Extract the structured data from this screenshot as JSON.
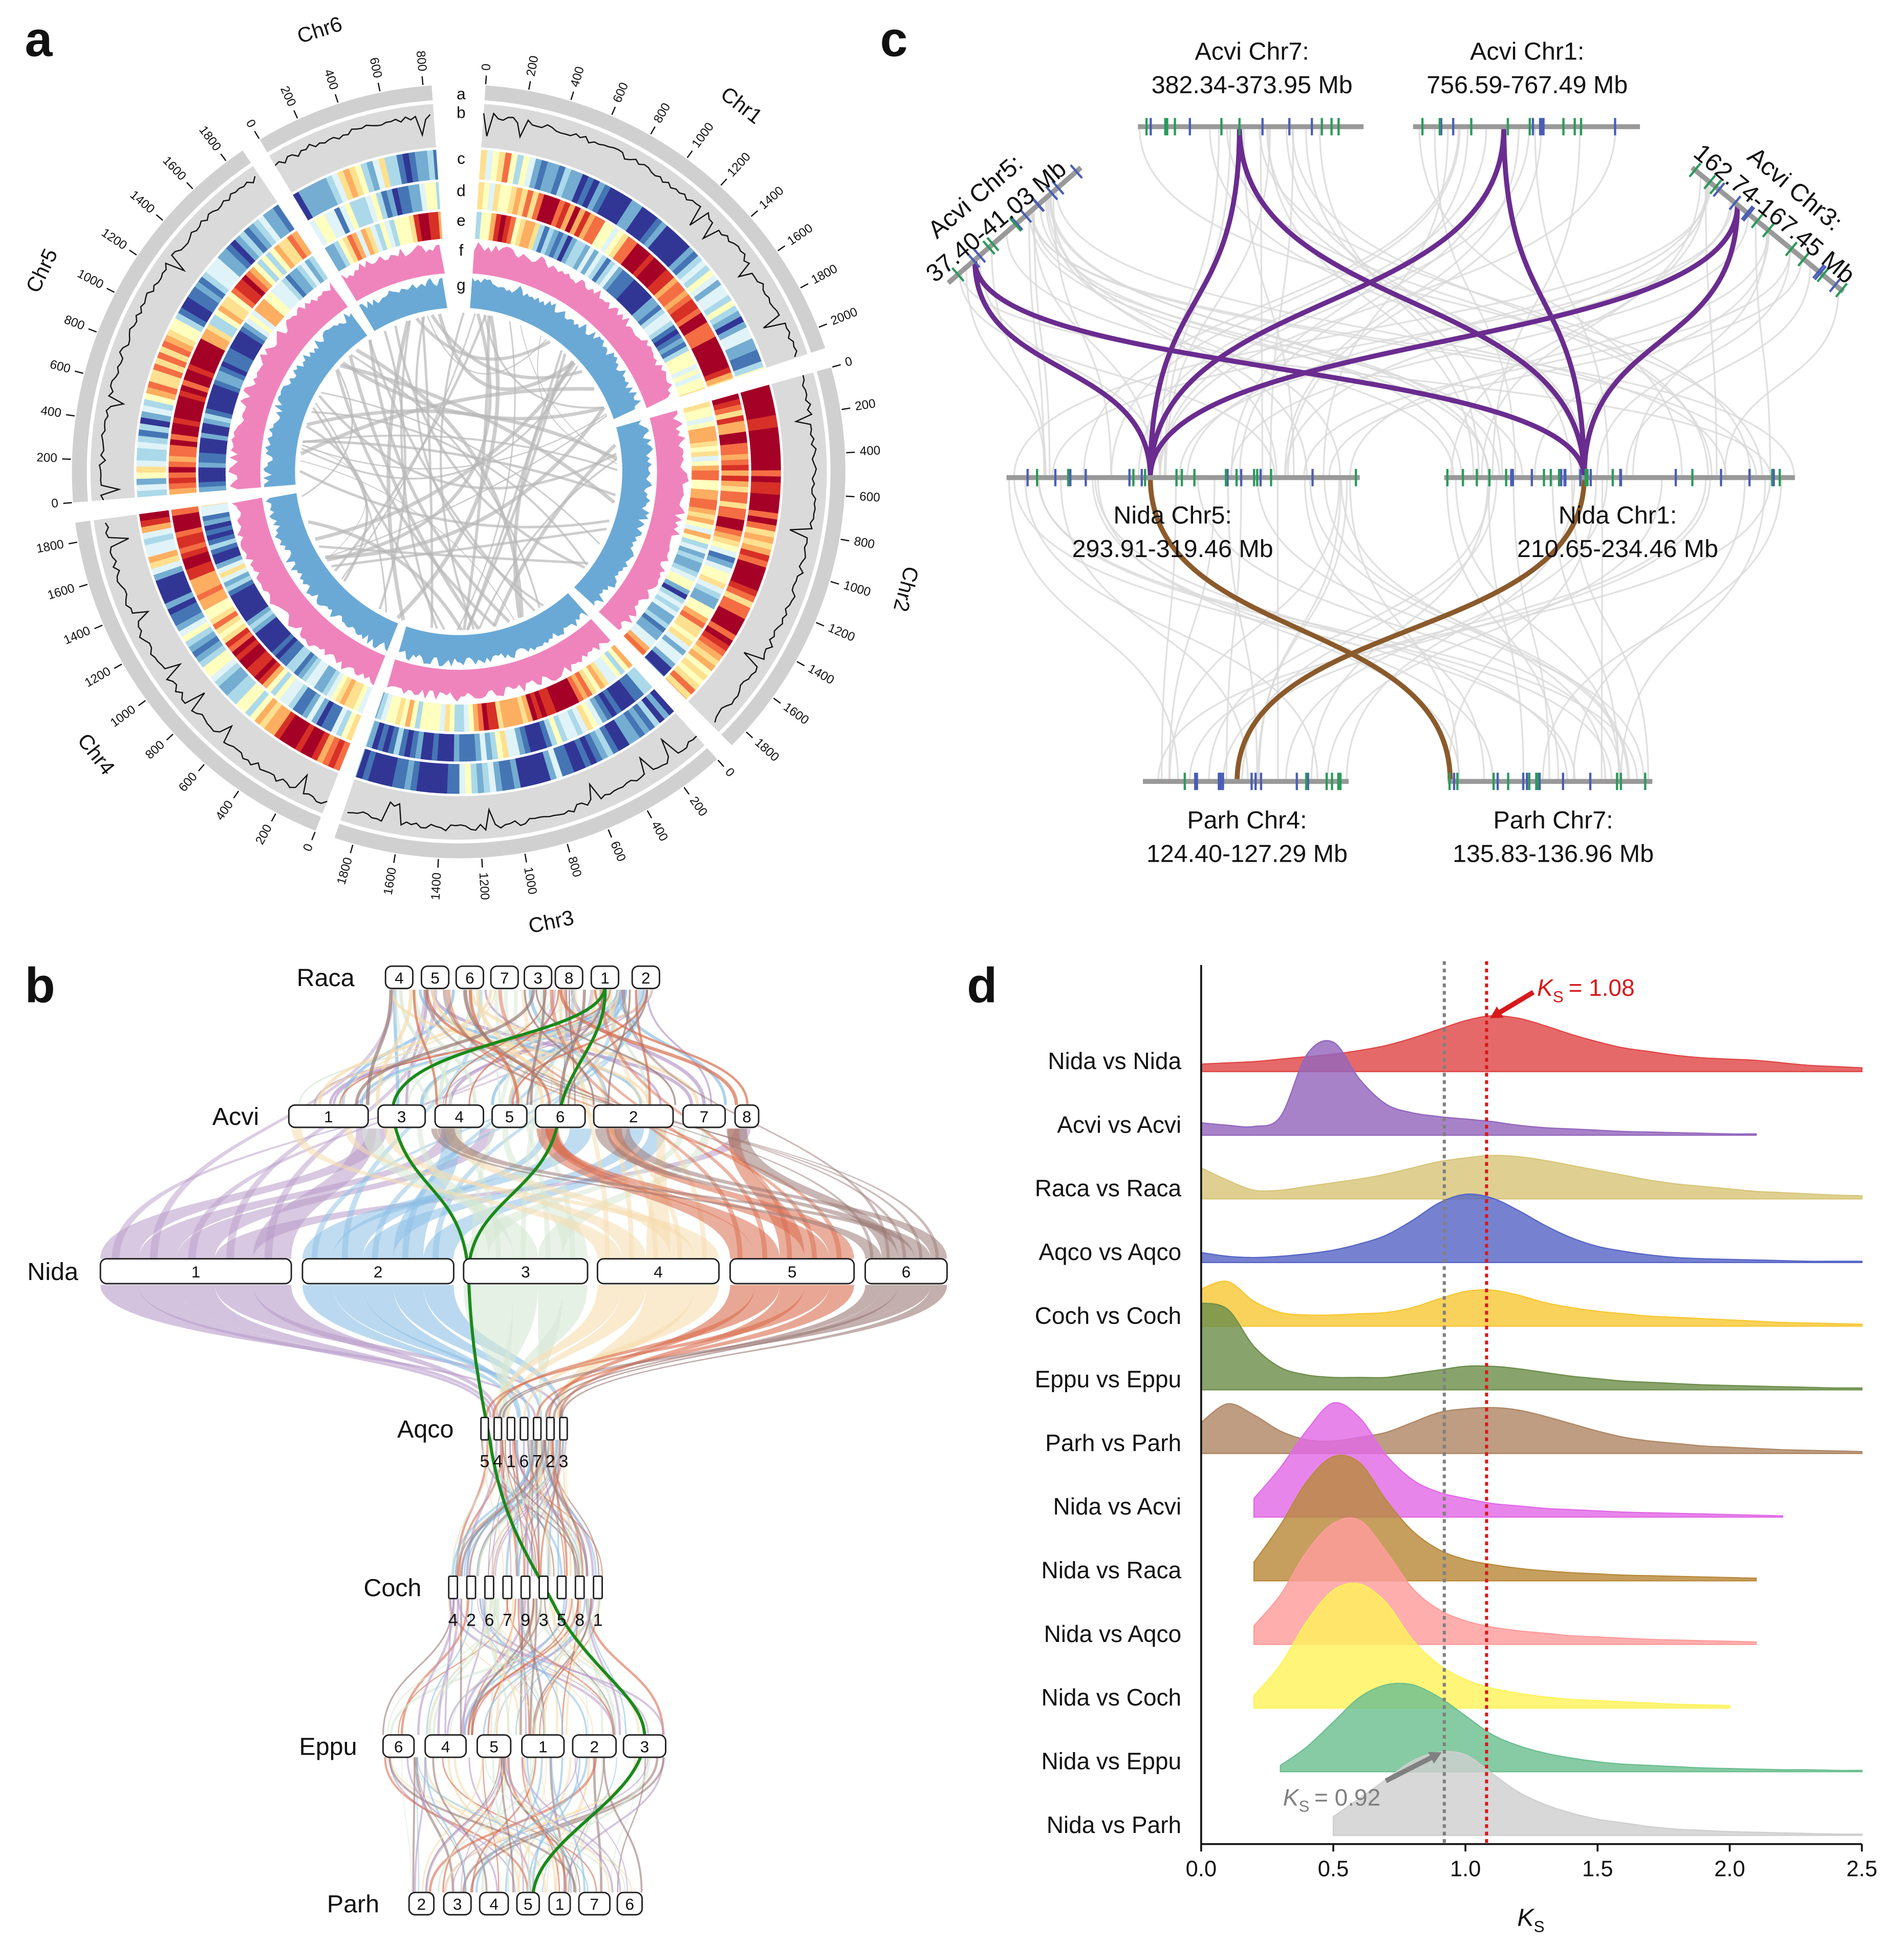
{
  "panel_labels": [
    "a",
    "b",
    "c",
    "d"
  ],
  "circos": {
    "chromosomes": [
      {
        "name": "Chr1",
        "ticks": [
          0,
          200,
          400,
          600,
          800,
          1000,
          1200,
          1400,
          1600,
          1800,
          2000
        ]
      },
      {
        "name": "Chr2",
        "ticks": [
          0,
          200,
          400,
          600,
          800,
          1000,
          1200,
          1400,
          1600,
          1800
        ]
      },
      {
        "name": "Chr3",
        "ticks": [
          0,
          200,
          400,
          600,
          800,
          1000,
          1200,
          1400,
          1600,
          1800
        ]
      },
      {
        "name": "Chr4",
        "ticks": [
          0,
          200,
          400,
          600,
          800,
          1000,
          1200,
          1400,
          1600,
          1800
        ]
      },
      {
        "name": "Chr5",
        "ticks": [
          0,
          200,
          400,
          600,
          800,
          1000,
          1200,
          1400,
          1600,
          1800
        ]
      },
      {
        "name": "Chr6",
        "ticks": [
          0,
          200,
          400,
          600,
          800
        ]
      }
    ],
    "tracks": [
      "a",
      "b",
      "c",
      "d",
      "e",
      "f",
      "g"
    ]
  },
  "synteny": {
    "rows": [
      {
        "name": "Raca",
        "blocks": [
          "4",
          "5",
          "6",
          "7",
          "3",
          "8",
          "1",
          "2"
        ]
      },
      {
        "name": "Acvi",
        "blocks": [
          "1",
          "3",
          "4",
          "5",
          "6",
          "2",
          "7",
          "8"
        ]
      },
      {
        "name": "Nida",
        "blocks": [
          "1",
          "2",
          "3",
          "4",
          "5",
          "6"
        ]
      },
      {
        "name": "Aqco",
        "blocks": [
          "5",
          "4",
          "1",
          "6",
          "7",
          "2",
          "3"
        ]
      },
      {
        "name": "Coch",
        "blocks": [
          "4",
          "2",
          "6",
          "7",
          "9",
          "3",
          "5",
          "8",
          "1"
        ]
      },
      {
        "name": "Eppu",
        "blocks": [
          "6",
          "4",
          "5",
          "1",
          "2",
          "3"
        ]
      },
      {
        "name": "Parh",
        "blocks": [
          "2",
          "3",
          "4",
          "5",
          "1",
          "7",
          "6"
        ]
      }
    ]
  },
  "microsynteny": {
    "regions": [
      {
        "species": "Acvi Chr5:",
        "range": "37.40-41.03 Mb"
      },
      {
        "species": "Acvi Chr7:",
        "range": "382.34-373.95 Mb"
      },
      {
        "species": "Acvi Chr1:",
        "range": "756.59-767.49 Mb"
      },
      {
        "species": "Acvi Chr3:",
        "range": "162.74-167.45 Mb"
      },
      {
        "species": "Nida Chr5:",
        "range": "293.91-319.46 Mb"
      },
      {
        "species": "Nida Chr1:",
        "range": "210.65-234.46 Mb"
      },
      {
        "species": "Parh Chr4:",
        "range": "124.40-127.29 Mb"
      },
      {
        "species": "Parh Chr7:",
        "range": "135.83-136.96 Mb"
      }
    ]
  },
  "chart_data": {
    "type": "ridgeline",
    "x": [
      0,
      0.1,
      0.2,
      0.3,
      0.4,
      0.5,
      0.6,
      0.7,
      0.8,
      0.9,
      1.0,
      1.1,
      1.2,
      1.3,
      1.4,
      1.5,
      1.6,
      1.7,
      1.8,
      1.9,
      2.0,
      2.1,
      2.2,
      2.3,
      2.4,
      2.5
    ],
    "xlim": [
      0,
      2.5
    ],
    "xticks": [
      {
        "value": 0,
        "label": "0.0"
      },
      0.5,
      {
        "value": 1,
        "label": "1.0"
      },
      1.5,
      {
        "value": 2,
        "label": "2.0"
      },
      2.5
    ],
    "x_label": {
      "symbol": "K",
      "subscript": "S"
    },
    "series": [
      {
        "name": "Nida vs Nida",
        "color": "#e04848",
        "values": [
          0.12,
          0.14,
          0.16,
          0.2,
          0.24,
          0.28,
          0.34,
          0.42,
          0.54,
          0.68,
          0.82,
          0.9,
          0.86,
          0.74,
          0.6,
          0.48,
          0.38,
          0.32,
          0.26,
          0.22,
          0.2,
          0.18,
          0.14,
          0.1,
          0.08,
          0.06
        ]
      },
      {
        "name": "Acvi vs Acvi",
        "color": "#9467bd",
        "values": [
          0.2,
          0.16,
          0.14,
          0.3,
          1.3,
          1.5,
          0.9,
          0.5,
          0.36,
          0.3,
          0.26,
          0.22,
          0.16,
          0.12,
          0.1,
          0.08,
          0.06,
          0.05,
          0.04,
          0.03,
          0.02,
          0.02,
          null,
          null,
          null,
          null
        ]
      },
      {
        "name": "Raca vs Raca",
        "color": "#d8c67a",
        "values": [
          0.5,
          0.3,
          0.14,
          0.14,
          0.2,
          0.26,
          0.32,
          0.4,
          0.5,
          0.6,
          0.66,
          0.7,
          0.68,
          0.62,
          0.54,
          0.46,
          0.38,
          0.3,
          0.24,
          0.2,
          0.16,
          0.12,
          0.1,
          0.08,
          0.06,
          0.05
        ]
      },
      {
        "name": "Aqco vs Aqco",
        "color": "#5866c6",
        "values": [
          0.16,
          0.1,
          0.08,
          0.1,
          0.14,
          0.2,
          0.3,
          0.44,
          0.68,
          0.96,
          1.1,
          1.04,
          0.84,
          0.6,
          0.4,
          0.26,
          0.18,
          0.12,
          0.08,
          0.06,
          0.05,
          0.04,
          0.03,
          0.02,
          0.02,
          0.02
        ]
      },
      {
        "name": "Coch vs Coch",
        "color": "#f7c836",
        "values": [
          0.6,
          0.72,
          0.4,
          0.22,
          0.18,
          0.18,
          0.2,
          0.22,
          0.3,
          0.44,
          0.56,
          0.58,
          0.5,
          0.38,
          0.3,
          0.24,
          0.2,
          0.16,
          0.14,
          0.12,
          0.1,
          0.08,
          0.06,
          0.05,
          0.04,
          0.03
        ]
      },
      {
        "name": "Eppu vs Eppu",
        "color": "#6e8f4c",
        "values": [
          1.4,
          1.3,
          0.7,
          0.36,
          0.24,
          0.2,
          0.2,
          0.2,
          0.26,
          0.32,
          0.38,
          0.38,
          0.34,
          0.28,
          0.22,
          0.18,
          0.14,
          0.12,
          0.1,
          0.08,
          0.07,
          0.06,
          0.05,
          0.04,
          0.03,
          0.03
        ]
      },
      {
        "name": "Parh vs Parh",
        "color": "#b08866",
        "values": [
          0.5,
          0.8,
          0.62,
          0.36,
          0.22,
          0.2,
          0.26,
          0.34,
          0.5,
          0.66,
          0.72,
          0.74,
          0.7,
          0.6,
          0.48,
          0.36,
          0.26,
          0.2,
          0.16,
          0.12,
          0.1,
          0.08,
          0.06,
          0.05,
          0.04,
          0.03
        ]
      },
      {
        "name": "Nida vs Acvi",
        "color": "#e26ae6",
        "values": [
          null,
          null,
          0.3,
          0.8,
          1.4,
          1.84,
          1.6,
          1.0,
          0.6,
          0.4,
          0.3,
          0.22,
          0.18,
          0.14,
          0.12,
          0.1,
          0.08,
          0.07,
          0.06,
          0.05,
          0.04,
          0.03,
          0.02,
          null,
          null,
          null
        ]
      },
      {
        "name": "Nida vs Raca",
        "color": "#b98a3c",
        "values": [
          null,
          null,
          0.3,
          0.9,
          1.6,
          2.0,
          1.9,
          1.3,
          0.8,
          0.5,
          0.34,
          0.26,
          0.2,
          0.16,
          0.13,
          0.11,
          0.09,
          0.08,
          0.07,
          0.06,
          0.05,
          0.04,
          null,
          null,
          null,
          null
        ]
      },
      {
        "name": "Nida vs Aqco",
        "color": "#ff9c9c",
        "values": [
          null,
          null,
          0.3,
          0.8,
          1.5,
          1.95,
          2.0,
          1.5,
          0.9,
          0.56,
          0.38,
          0.28,
          0.22,
          0.18,
          0.14,
          0.12,
          0.1,
          0.08,
          0.07,
          0.06,
          0.05,
          0.04,
          null,
          null,
          null,
          null
        ]
      },
      {
        "name": "Nida vs Coch",
        "color": "#fff35c",
        "values": [
          null,
          null,
          0.2,
          0.7,
          1.4,
          1.9,
          2.0,
          1.7,
          1.1,
          0.7,
          0.46,
          0.32,
          0.24,
          0.18,
          0.14,
          0.12,
          0.1,
          0.08,
          0.06,
          0.05,
          0.04,
          null,
          null,
          null,
          null,
          null
        ]
      },
      {
        "name": "Nida vs Eppu",
        "color": "#6cbf90",
        "values": [
          null,
          null,
          null,
          0.1,
          0.4,
          0.8,
          1.2,
          1.4,
          1.4,
          1.2,
          0.9,
          0.6,
          0.42,
          0.3,
          0.22,
          0.16,
          0.12,
          0.1,
          0.08,
          0.06,
          0.05,
          0.04,
          0.03,
          0.03,
          0.02,
          0.02
        ]
      },
      {
        "name": "Nida vs Parh",
        "color": "#cfcfcf",
        "values": [
          null,
          null,
          null,
          null,
          null,
          0.3,
          0.6,
          0.9,
          1.2,
          1.34,
          1.3,
          1.0,
          0.7,
          0.5,
          0.36,
          0.26,
          0.2,
          0.14,
          0.1,
          0.08,
          0.06,
          0.05,
          0.04,
          0.03,
          0.02,
          0.02
        ]
      }
    ],
    "annotations": [
      {
        "symbol": "K",
        "subscript": "S",
        "text": "= 1.08",
        "value": 1.08,
        "color": "#d7191c"
      },
      {
        "symbol": "K",
        "subscript": "S",
        "text": "= 0.92",
        "value": 0.92,
        "color": "#808080"
      }
    ]
  }
}
